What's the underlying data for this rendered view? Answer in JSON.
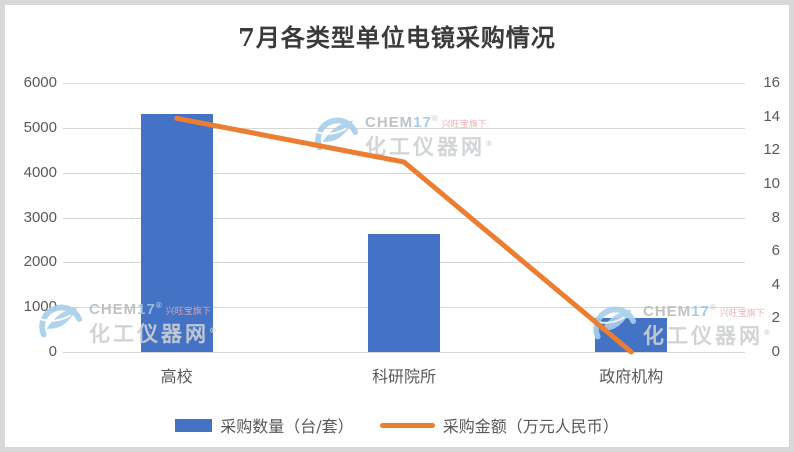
{
  "title": "7月各类型单位电镜采购情况",
  "chart_data": {
    "type": "bar+line",
    "categories": [
      "高校",
      "科研院所",
      "政府机构"
    ],
    "series": [
      {
        "name": "采购数量（台/套）",
        "type": "bar",
        "axis": "left",
        "color": "#4472C4",
        "values": [
          5300,
          2630,
          750
        ]
      },
      {
        "name": "采购金额（万元人民币）",
        "type": "line",
        "axis": "right",
        "color": "#ED7D31",
        "values": [
          13.9,
          11.3,
          0
        ]
      }
    ],
    "left_axis": {
      "min": 0,
      "max": 6000,
      "step": 1000,
      "ticks": [
        0,
        1000,
        2000,
        3000,
        4000,
        5000,
        6000
      ]
    },
    "right_axis": {
      "min": 0,
      "max": 16,
      "step": 2,
      "ticks": [
        0,
        2,
        4,
        6,
        8,
        10,
        12,
        14,
        16
      ]
    },
    "grid": "horizontal",
    "legend_position": "bottom"
  },
  "watermark": {
    "brand_gray": "CHEM",
    "brand_blue": "17",
    "reg_mark": "®",
    "tagline": "兴旺宝旗下",
    "site": "化工仪器网",
    "site_mark": "®"
  },
  "colors": {
    "bar": "#4472C4",
    "line": "#ED7D31",
    "grid": "#D6D6D6",
    "axis_text": "#595959",
    "title_text": "#3A3A3A",
    "frame_border": "#D8D8D8",
    "watermark_blue": "#A8CFEC",
    "watermark_gray": "#CED1D3",
    "watermark_red": "#E8A9AC"
  }
}
